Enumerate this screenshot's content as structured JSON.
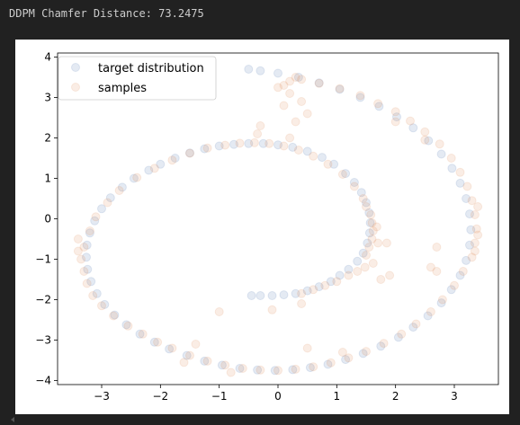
{
  "output": {
    "stdout_text": "DDPM Chamfer Distance: 73.2475"
  },
  "chart_data": {
    "type": "scatter",
    "title": "",
    "xlabel": "",
    "ylabel": "",
    "xlim": [
      -3.75,
      3.75
    ],
    "ylim": [
      -4.1,
      4.1
    ],
    "xticks": [
      -3,
      -2,
      -1,
      0,
      1,
      2,
      3
    ],
    "xtick_labels": [
      "−3",
      "−2",
      "−1",
      "0",
      "1",
      "2",
      "3"
    ],
    "yticks": [
      -4,
      -3,
      -2,
      -1,
      0,
      1,
      2,
      3,
      4
    ],
    "ytick_labels": [
      "−4",
      "−3",
      "−2",
      "−1",
      "0",
      "1",
      "2",
      "3",
      "4"
    ],
    "grid": false,
    "legend_position": "top-left",
    "series": [
      {
        "name": "target distribution",
        "color": "#4c72b0",
        "alpha": 0.15,
        "description": "spiral: inner arc from (-0.5,-1.9) curving through (1.6,-1) up to (0,1.8), outer loop through (-3.2,-1), (-0.5,-3.7), (3.2,-1), (3.2,1), (1.5,3.2), (-0.5,3.7)",
        "points": [
          [
            -0.45,
            -1.9
          ],
          [
            -0.3,
            -1.9
          ],
          [
            -0.1,
            -1.9
          ],
          [
            0.1,
            -1.88
          ],
          [
            0.3,
            -1.85
          ],
          [
            0.5,
            -1.78
          ],
          [
            0.7,
            -1.68
          ],
          [
            0.9,
            -1.55
          ],
          [
            1.05,
            -1.4
          ],
          [
            1.2,
            -1.25
          ],
          [
            1.35,
            -1.05
          ],
          [
            1.45,
            -0.85
          ],
          [
            1.52,
            -0.6
          ],
          [
            1.56,
            -0.35
          ],
          [
            1.57,
            -0.1
          ],
          [
            1.55,
            0.15
          ],
          [
            1.5,
            0.4
          ],
          [
            1.42,
            0.65
          ],
          [
            1.3,
            0.9
          ],
          [
            1.15,
            1.12
          ],
          [
            0.95,
            1.35
          ],
          [
            0.75,
            1.52
          ],
          [
            0.5,
            1.67
          ],
          [
            0.25,
            1.77
          ],
          [
            0.0,
            1.83
          ],
          [
            -0.25,
            1.86
          ],
          [
            -0.5,
            1.86
          ],
          [
            -0.75,
            1.84
          ],
          [
            -1.0,
            1.8
          ],
          [
            -1.25,
            1.73
          ],
          [
            -1.5,
            1.63
          ],
          [
            -1.75,
            1.5
          ],
          [
            -2.0,
            1.35
          ],
          [
            -2.2,
            1.2
          ],
          [
            -2.45,
            1.0
          ],
          [
            -2.65,
            0.78
          ],
          [
            -2.85,
            0.52
          ],
          [
            -3.0,
            0.25
          ],
          [
            -3.12,
            -0.05
          ],
          [
            -3.2,
            -0.35
          ],
          [
            -3.25,
            -0.65
          ],
          [
            -3.26,
            -0.95
          ],
          [
            -3.24,
            -1.25
          ],
          [
            -3.18,
            -1.55
          ],
          [
            -3.08,
            -1.85
          ],
          [
            -2.95,
            -2.12
          ],
          [
            -2.78,
            -2.38
          ],
          [
            -2.58,
            -2.62
          ],
          [
            -2.35,
            -2.85
          ],
          [
            -2.1,
            -3.05
          ],
          [
            -1.85,
            -3.22
          ],
          [
            -1.55,
            -3.38
          ],
          [
            -1.25,
            -3.52
          ],
          [
            -0.95,
            -3.62
          ],
          [
            -0.65,
            -3.7
          ],
          [
            -0.35,
            -3.74
          ],
          [
            -0.05,
            -3.75
          ],
          [
            0.25,
            -3.73
          ],
          [
            0.55,
            -3.68
          ],
          [
            0.85,
            -3.6
          ],
          [
            1.15,
            -3.48
          ],
          [
            1.45,
            -3.33
          ],
          [
            1.75,
            -3.15
          ],
          [
            2.05,
            -2.93
          ],
          [
            2.3,
            -2.68
          ],
          [
            2.55,
            -2.4
          ],
          [
            2.78,
            -2.08
          ],
          [
            2.95,
            -1.75
          ],
          [
            3.1,
            -1.4
          ],
          [
            3.2,
            -1.03
          ],
          [
            3.26,
            -0.65
          ],
          [
            3.28,
            -0.27
          ],
          [
            3.26,
            0.12
          ],
          [
            3.2,
            0.5
          ],
          [
            3.1,
            0.88
          ],
          [
            2.96,
            1.25
          ],
          [
            2.78,
            1.6
          ],
          [
            2.56,
            1.93
          ],
          [
            2.3,
            2.25
          ],
          [
            2.02,
            2.52
          ],
          [
            1.72,
            2.78
          ],
          [
            1.4,
            3.0
          ],
          [
            1.05,
            3.2
          ],
          [
            0.7,
            3.36
          ],
          [
            0.35,
            3.5
          ],
          [
            0.0,
            3.6
          ],
          [
            -0.3,
            3.66
          ],
          [
            -0.5,
            3.7
          ]
        ]
      },
      {
        "name": "samples",
        "color": "#dd8452",
        "alpha": 0.15,
        "description": "noisy samples concentrated on the spiral, heavy on the right flank of the inner arc and outer loop, plus a cluster near the top (0.2,3.4)",
        "points": [
          [
            1.5,
            -0.9
          ],
          [
            1.55,
            -0.7
          ],
          [
            1.6,
            -0.5
          ],
          [
            1.62,
            -0.3
          ],
          [
            1.6,
            -0.1
          ],
          [
            1.58,
            0.1
          ],
          [
            1.5,
            0.3
          ],
          [
            1.45,
            0.5
          ],
          [
            1.62,
            -1.1
          ],
          [
            1.48,
            -1.2
          ],
          [
            1.35,
            -1.3
          ],
          [
            1.2,
            -1.4
          ],
          [
            1.0,
            -1.55
          ],
          [
            0.8,
            -1.65
          ],
          [
            0.6,
            -1.75
          ],
          [
            0.4,
            -1.85
          ],
          [
            1.7,
            -0.6
          ],
          [
            1.68,
            -0.2
          ],
          [
            1.3,
            0.8
          ],
          [
            1.1,
            1.1
          ],
          [
            0.85,
            1.35
          ],
          [
            0.6,
            1.55
          ],
          [
            0.35,
            1.7
          ],
          [
            0.1,
            1.8
          ],
          [
            -0.15,
            1.86
          ],
          [
            -0.4,
            1.88
          ],
          [
            -0.65,
            1.87
          ],
          [
            -0.9,
            1.82
          ],
          [
            -1.2,
            1.75
          ],
          [
            -1.5,
            1.62
          ],
          [
            -1.8,
            1.45
          ],
          [
            -2.1,
            1.25
          ],
          [
            -2.4,
            1.02
          ],
          [
            -2.7,
            0.7
          ],
          [
            -2.9,
            0.4
          ],
          [
            -3.1,
            0.05
          ],
          [
            -3.2,
            -0.3
          ],
          [
            -3.3,
            -0.7
          ],
          [
            -3.35,
            -1.0
          ],
          [
            -3.3,
            -1.3
          ],
          [
            -3.25,
            -1.6
          ],
          [
            -3.15,
            -1.9
          ],
          [
            -3.0,
            -2.15
          ],
          [
            -2.8,
            -2.4
          ],
          [
            -2.55,
            -2.65
          ],
          [
            -2.3,
            -2.85
          ],
          [
            -2.05,
            -3.05
          ],
          [
            -1.8,
            -3.2
          ],
          [
            -1.5,
            -3.38
          ],
          [
            -1.2,
            -3.52
          ],
          [
            -0.9,
            -3.62
          ],
          [
            -0.6,
            -3.7
          ],
          [
            -0.3,
            -3.74
          ],
          [
            0.0,
            -3.75
          ],
          [
            0.3,
            -3.72
          ],
          [
            0.6,
            -3.66
          ],
          [
            0.9,
            -3.56
          ],
          [
            1.2,
            -3.44
          ],
          [
            1.5,
            -3.28
          ],
          [
            1.8,
            -3.08
          ],
          [
            2.1,
            -2.85
          ],
          [
            2.35,
            -2.6
          ],
          [
            2.6,
            -2.3
          ],
          [
            2.8,
            -2.0
          ],
          [
            3.0,
            -1.65
          ],
          [
            3.15,
            -1.3
          ],
          [
            3.3,
            -0.95
          ],
          [
            3.35,
            -0.6
          ],
          [
            3.38,
            -0.25
          ],
          [
            3.35,
            0.1
          ],
          [
            3.3,
            0.45
          ],
          [
            3.22,
            0.8
          ],
          [
            3.1,
            1.15
          ],
          [
            2.95,
            1.5
          ],
          [
            2.75,
            1.85
          ],
          [
            2.5,
            2.15
          ],
          [
            2.25,
            2.42
          ],
          [
            2.0,
            2.65
          ],
          [
            1.7,
            2.85
          ],
          [
            1.4,
            3.05
          ],
          [
            1.05,
            3.22
          ],
          [
            0.7,
            3.35
          ],
          [
            0.4,
            3.45
          ],
          [
            0.2,
            3.4
          ],
          [
            0.1,
            3.3
          ],
          [
            0.0,
            3.25
          ],
          [
            0.3,
            3.5
          ],
          [
            0.2,
            3.1
          ],
          [
            0.4,
            2.9
          ],
          [
            0.1,
            2.8
          ],
          [
            0.3,
            2.4
          ],
          [
            0.5,
            2.6
          ],
          [
            -0.3,
            2.3
          ],
          [
            0.2,
            2.0
          ],
          [
            -0.35,
            2.1
          ],
          [
            2.7,
            -0.7
          ],
          [
            2.6,
            -1.2
          ],
          [
            2.7,
            -1.3
          ],
          [
            1.85,
            -0.6
          ],
          [
            1.9,
            -1.4
          ],
          [
            1.75,
            -1.5
          ],
          [
            0.4,
            -2.1
          ],
          [
            -0.1,
            -2.25
          ],
          [
            -1.0,
            -2.3
          ],
          [
            0.5,
            -3.2
          ],
          [
            1.1,
            -3.3
          ],
          [
            -1.4,
            -3.1
          ],
          [
            -3.4,
            -0.5
          ],
          [
            -3.4,
            -0.8
          ],
          [
            3.4,
            -0.4
          ],
          [
            3.35,
            -0.8
          ],
          [
            3.4,
            0.3
          ],
          [
            -1.6,
            -3.55
          ],
          [
            -0.8,
            -3.8
          ],
          [
            2.0,
            2.4
          ],
          [
            2.5,
            1.95
          ]
        ]
      }
    ]
  }
}
